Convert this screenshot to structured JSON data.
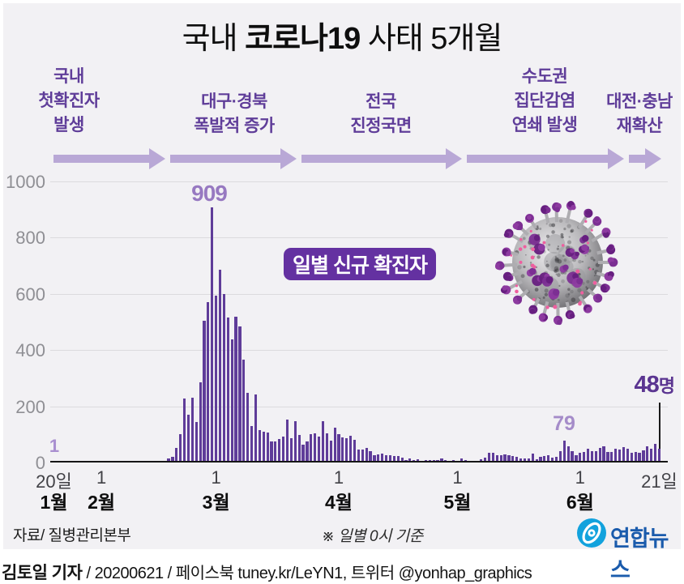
{
  "title": {
    "pre": "국내 ",
    "bold": "코로나19",
    "post": " 사태 5개월"
  },
  "timeline": {
    "phases": [
      {
        "label": "국내\n첫확진자\n발생"
      },
      {
        "label": "대구·경북\n폭발적 증가"
      },
      {
        "label": "전국\n진정국면"
      },
      {
        "label": "수도권\n집단감염\n연쇄 발생"
      },
      {
        "label": "대전·충남\n재확산"
      }
    ]
  },
  "chart_data": {
    "type": "bar",
    "title": "일별 신규 확진자",
    "period": {
      "start": "1월 20일",
      "end": "6월 21일"
    },
    "ylim": [
      0,
      1000
    ],
    "yticks": [
      1000,
      800,
      600,
      400,
      200,
      0
    ],
    "grid": true,
    "bar_color": "#5f3c99",
    "x_ticks": [
      {
        "day": 0,
        "label": "20일"
      },
      {
        "day": 12,
        "label": "1"
      },
      {
        "day": 41,
        "label": "1"
      },
      {
        "day": 72,
        "label": "1"
      },
      {
        "day": 102,
        "label": "1"
      },
      {
        "day": 133,
        "label": "1"
      },
      {
        "day": 153,
        "label": "21일"
      }
    ],
    "month_labels": [
      {
        "day": 0,
        "label": "1월"
      },
      {
        "day": 12,
        "label": "2월"
      },
      {
        "day": 41,
        "label": "3월"
      },
      {
        "day": 72,
        "label": "4월"
      },
      {
        "day": 102,
        "label": "5월"
      },
      {
        "day": 133,
        "label": "6월"
      }
    ],
    "annotations": [
      {
        "label": "1",
        "day": 0
      },
      {
        "label": "909",
        "day": 40
      },
      {
        "label": "79",
        "day": 129
      },
      {
        "label": "48",
        "unit": "명",
        "day": 153
      }
    ],
    "values": [
      1,
      0,
      0,
      0,
      1,
      0,
      1,
      1,
      0,
      0,
      2,
      1,
      1,
      1,
      0,
      1,
      3,
      4,
      1,
      0,
      3,
      0,
      1,
      0,
      0,
      0,
      0,
      1,
      1,
      15,
      20,
      53,
      100,
      229,
      169,
      231,
      144,
      284,
      505,
      571,
      909,
      595,
      686,
      600,
      516,
      438,
      518,
      483,
      367,
      248,
      131,
      242,
      114,
      110,
      107,
      76,
      74,
      84,
      93,
      152,
      87,
      147,
      98,
      64,
      76,
      100,
      104,
      91,
      146,
      105,
      78,
      125,
      101,
      89,
      86,
      94,
      81,
      47,
      47,
      53,
      39,
      27,
      30,
      32,
      25,
      27,
      22,
      22,
      18,
      8,
      13,
      9,
      11,
      6,
      8,
      10,
      10,
      10,
      14,
      9,
      4,
      9,
      6,
      13,
      8,
      3,
      2,
      4,
      12,
      18,
      34,
      35,
      27,
      26,
      29,
      27,
      23,
      19,
      13,
      15,
      13,
      32,
      12,
      20,
      23,
      25,
      16,
      19,
      40,
      79,
      58,
      39,
      27,
      35,
      38,
      49,
      39,
      39,
      51,
      57,
      38,
      38,
      50,
      45,
      56,
      48,
      34,
      37,
      34,
      43,
      59,
      49,
      67,
      48
    ]
  },
  "footer": {
    "source": "자료/ 질병관리본부",
    "note": "※ 일별 0시 기준",
    "logo_text": "연합뉴스",
    "credit_bold": "김토일 기자",
    "credit_rest": " / 20200621 / 페이스북 tuney.kr/LeYN1, 트위터 @yonhap_graphics"
  }
}
